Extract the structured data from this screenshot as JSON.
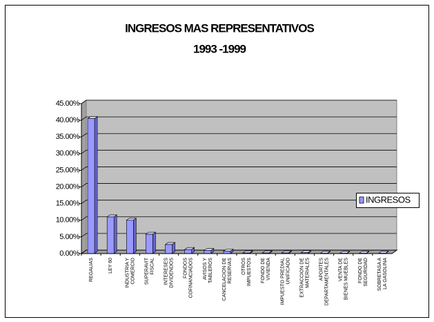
{
  "chart_data": {
    "type": "bar3d",
    "title": "INGRESOS MAS REPRESENTATIVOS",
    "subtitle": "1993 -1999",
    "categories": [
      "REGALIAS",
      "LEY 60",
      "INDUSTRIA Y COMERCIO",
      "SUPERAVIT FISCAL",
      "INTERESES DIVIDENDOS",
      "FONDOS COFINANCIADOS",
      "AVISOS Y TABLEROS",
      "CANCELACION DE RESERVAS",
      "OTROS IMPUESTOS",
      "FONDO DE VIVIENDA",
      "IMPUESTO PREDIAL UNIFICADO",
      "EXTRACCION DE MATERIALES",
      "APORTES DEPARTAMENTALES",
      "VENTA DE BIENES MUEBLES",
      "FONDO DE SEGURIDAD",
      "SOBRETASA A LA GASOLINA"
    ],
    "series": [
      {
        "name": "INGRESOS",
        "color": "#9999ff",
        "values": [
          40.5,
          11,
          10,
          5.8,
          2.7,
          1.2,
          0.9,
          0.7,
          0.2,
          0.2,
          0.2,
          0.3,
          0.1,
          0.1,
          0.1,
          0.1
        ]
      }
    ],
    "ylim": [
      0,
      45
    ],
    "yticks": [
      {
        "value": 0,
        "label": "0.00%"
      },
      {
        "value": 5,
        "label": "5.00%"
      },
      {
        "value": 10,
        "label": "10.00%"
      },
      {
        "value": 15,
        "label": "15.00%"
      },
      {
        "value": 20,
        "label": "20.00%"
      },
      {
        "value": 25,
        "label": "25.00%"
      },
      {
        "value": 30,
        "label": "30.00%"
      },
      {
        "value": 35,
        "label": "35.00%"
      },
      {
        "value": 40,
        "label": "40.00%"
      },
      {
        "value": 45,
        "label": "45.00%"
      }
    ],
    "grid": true,
    "legend": "right"
  }
}
